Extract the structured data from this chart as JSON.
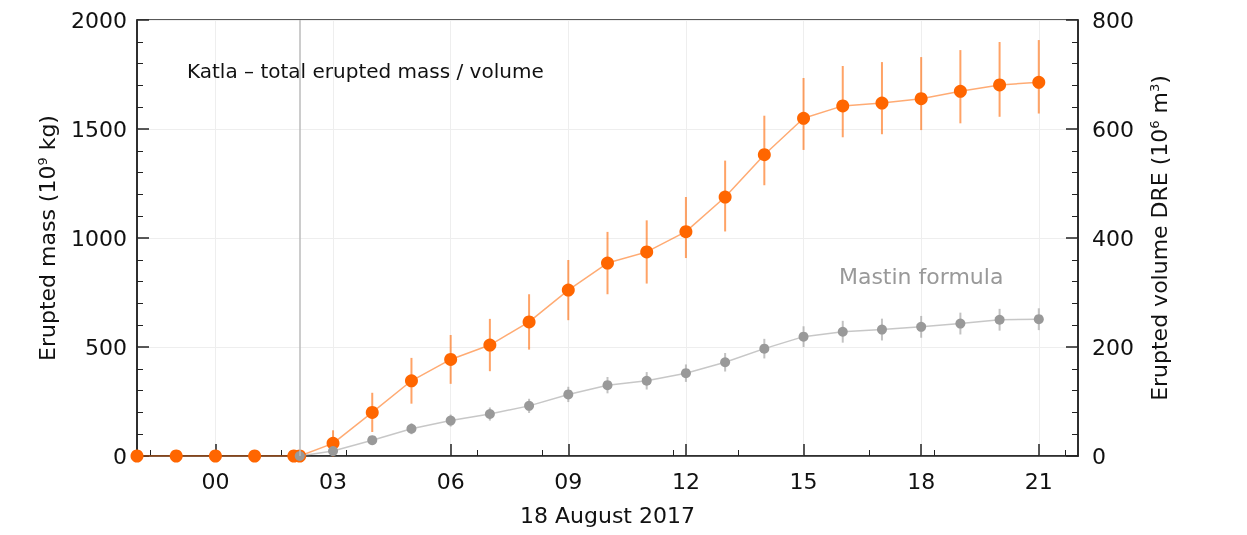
{
  "chart_data": {
    "type": "line",
    "title": "Katla – total erupted mass / volume",
    "xlabel": "18 August 2017",
    "ylabel": "Erupted mass (10$^{9}$ kg)",
    "y2label": "Erupted volume DRE (10$^{6}$ m$^{3}$)",
    "xlim": [
      -2,
      22
    ],
    "xticks": [
      {
        "value": 0,
        "label": "00"
      },
      {
        "value": 3,
        "label": "03"
      },
      {
        "value": 6,
        "label": "06"
      },
      {
        "value": 9,
        "label": "09"
      },
      {
        "value": 12,
        "label": "12"
      },
      {
        "value": 15,
        "label": "15"
      },
      {
        "value": 18,
        "label": "18"
      },
      {
        "value": 21,
        "label": "21"
      }
    ],
    "ylim": [
      0,
      2000
    ],
    "yticks": [
      0,
      500,
      1000,
      1500,
      2000
    ],
    "y2lim": [
      0,
      800
    ],
    "y2ticks": [
      0,
      200,
      400,
      600,
      800
    ],
    "grid": true,
    "marker": "circle",
    "line_style": "solid",
    "ref_lines": [
      {
        "axis": "x",
        "value": 2.15,
        "color": "#bbbbbb"
      }
    ],
    "series": [
      {
        "color": "#ff6600",
        "x": [
          -2,
          -1,
          0,
          1,
          2,
          2.15,
          3,
          4,
          5,
          6,
          7,
          8,
          9,
          10,
          11,
          12,
          13,
          14,
          15,
          16,
          17,
          18,
          19,
          20,
          21
        ],
        "values": [
          0,
          0,
          0,
          0,
          0,
          0,
          58,
          200,
          345,
          443,
          509,
          615,
          761,
          885,
          936,
          1029,
          1188,
          1382,
          1549,
          1606,
          1619,
          1639,
          1673,
          1702,
          1714
        ],
        "errors": [
          null,
          null,
          null,
          null,
          null,
          null,
          60,
          90,
          105,
          112,
          120,
          127,
          138,
          143,
          145,
          [
            908,
            1188
          ],
          [
            1030,
            1355
          ],
          [
            1242,
            1561
          ],
          [
            1404,
            1734
          ],
          [
            1462,
            1789
          ],
          [
            1476,
            1807
          ],
          [
            1495,
            1830
          ],
          [
            1526,
            1862
          ],
          [
            1556,
            1899
          ],
          [
            1571,
            1908
          ]
        ]
      },
      {
        "name": "Mastin formula",
        "color": "#999999",
        "axis": "y2",
        "x": [
          2.15,
          3,
          4,
          5,
          6,
          7,
          8,
          9,
          10,
          11,
          12,
          13,
          14,
          15,
          16,
          17,
          18,
          19,
          20,
          21
        ],
        "values": [
          0,
          9,
          29,
          50,
          65,
          77,
          92,
          113,
          130,
          138,
          152,
          172,
          197,
          219,
          228,
          232,
          237,
          243,
          250,
          251
        ],
        "errors": [
          null,
          4,
          8,
          10,
          11,
          12,
          13,
          14,
          15,
          16,
          16,
          17,
          18,
          19,
          20,
          20,
          20,
          20,
          20,
          20
        ]
      }
    ]
  }
}
